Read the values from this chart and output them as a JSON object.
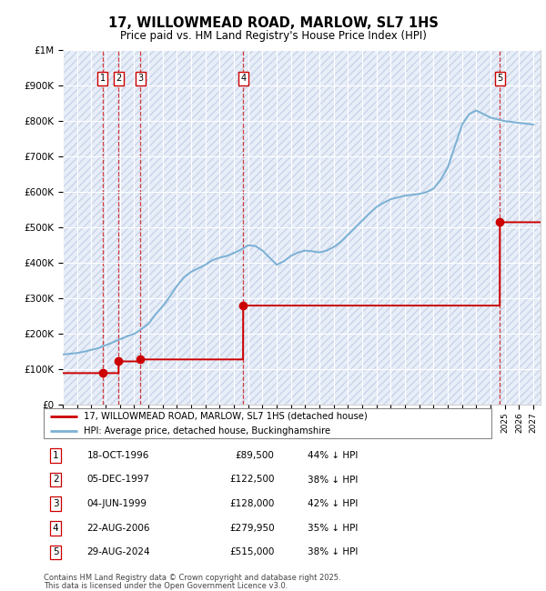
{
  "title": "17, WILLOWMEAD ROAD, MARLOW, SL7 1HS",
  "subtitle": "Price paid vs. HM Land Registry's House Price Index (HPI)",
  "ylabel_ticks": [
    "£0",
    "£100K",
    "£200K",
    "£300K",
    "£400K",
    "£500K",
    "£600K",
    "£700K",
    "£800K",
    "£900K",
    "£1M"
  ],
  "ytick_values": [
    0,
    100000,
    200000,
    300000,
    400000,
    500000,
    600000,
    700000,
    800000,
    900000,
    1000000
  ],
  "xlim_start": 1994.0,
  "xlim_end": 2027.5,
  "ylim_min": 0,
  "ylim_max": 1000000,
  "background_color": "#e8eef8",
  "hatch_color": "#c8d4e8",
  "grid_color": "#ffffff",
  "transaction_color": "#cc0000",
  "hpi_color": "#7ab0d4",
  "transactions": [
    {
      "num": 1,
      "date": "18-OCT-1996",
      "year": 1996.8,
      "price": 89500,
      "pct": "44%",
      "dir": "↓"
    },
    {
      "num": 2,
      "date": "05-DEC-1997",
      "year": 1997.92,
      "price": 122500,
      "pct": "38%",
      "dir": "↓"
    },
    {
      "num": 3,
      "date": "04-JUN-1999",
      "year": 1999.43,
      "price": 128000,
      "pct": "42%",
      "dir": "↓"
    },
    {
      "num": 4,
      "date": "22-AUG-2006",
      "year": 2006.65,
      "price": 279950,
      "pct": "35%",
      "dir": "↓"
    },
    {
      "num": 5,
      "date": "29-AUG-2024",
      "year": 2024.65,
      "price": 515000,
      "pct": "38%",
      "dir": "↓"
    }
  ],
  "legend_line1": "17, WILLOWMEAD ROAD, MARLOW, SL7 1HS (detached house)",
  "legend_line2": "HPI: Average price, detached house, Buckinghamshire",
  "footer_line1": "Contains HM Land Registry data © Crown copyright and database right 2025.",
  "footer_line2": "This data is licensed under the Open Government Licence v3.0.",
  "hpi_points": [
    [
      1994.0,
      142000
    ],
    [
      1994.5,
      144000
    ],
    [
      1995.0,
      146000
    ],
    [
      1995.5,
      150000
    ],
    [
      1996.0,
      155000
    ],
    [
      1996.5,
      160000
    ],
    [
      1997.0,
      168000
    ],
    [
      1997.5,
      176000
    ],
    [
      1998.0,
      185000
    ],
    [
      1998.5,
      193000
    ],
    [
      1999.0,
      200000
    ],
    [
      1999.5,
      213000
    ],
    [
      2000.0,
      228000
    ],
    [
      2000.5,
      255000
    ],
    [
      2001.0,
      278000
    ],
    [
      2001.5,
      305000
    ],
    [
      2002.0,
      335000
    ],
    [
      2002.5,
      360000
    ],
    [
      2003.0,
      375000
    ],
    [
      2003.5,
      385000
    ],
    [
      2004.0,
      395000
    ],
    [
      2004.5,
      408000
    ],
    [
      2005.0,
      415000
    ],
    [
      2005.5,
      420000
    ],
    [
      2006.0,
      428000
    ],
    [
      2006.5,
      438000
    ],
    [
      2007.0,
      450000
    ],
    [
      2007.5,
      448000
    ],
    [
      2008.0,
      435000
    ],
    [
      2008.5,
      415000
    ],
    [
      2009.0,
      395000
    ],
    [
      2009.5,
      405000
    ],
    [
      2010.0,
      420000
    ],
    [
      2010.5,
      430000
    ],
    [
      2011.0,
      435000
    ],
    [
      2011.5,
      433000
    ],
    [
      2012.0,
      430000
    ],
    [
      2012.5,
      435000
    ],
    [
      2013.0,
      445000
    ],
    [
      2013.5,
      460000
    ],
    [
      2014.0,
      480000
    ],
    [
      2014.5,
      500000
    ],
    [
      2015.0,
      520000
    ],
    [
      2015.5,
      540000
    ],
    [
      2016.0,
      558000
    ],
    [
      2016.5,
      570000
    ],
    [
      2017.0,
      580000
    ],
    [
      2017.5,
      585000
    ],
    [
      2018.0,
      590000
    ],
    [
      2018.5,
      592000
    ],
    [
      2019.0,
      595000
    ],
    [
      2019.5,
      600000
    ],
    [
      2020.0,
      610000
    ],
    [
      2020.5,
      635000
    ],
    [
      2021.0,
      670000
    ],
    [
      2021.5,
      730000
    ],
    [
      2022.0,
      790000
    ],
    [
      2022.5,
      820000
    ],
    [
      2023.0,
      830000
    ],
    [
      2023.5,
      820000
    ],
    [
      2024.0,
      810000
    ],
    [
      2024.5,
      805000
    ],
    [
      2025.0,
      800000
    ],
    [
      2025.5,
      798000
    ],
    [
      2026.0,
      795000
    ],
    [
      2026.5,
      793000
    ],
    [
      2027.0,
      790000
    ]
  ],
  "price_paid_points": [
    [
      1994.0,
      89500
    ],
    [
      1996.79,
      89500
    ],
    [
      1996.8,
      89500
    ],
    [
      1997.91,
      89500
    ],
    [
      1997.92,
      122500
    ],
    [
      1999.42,
      122500
    ],
    [
      1999.43,
      128000
    ],
    [
      2006.64,
      128000
    ],
    [
      2006.65,
      279950
    ],
    [
      2024.64,
      279950
    ],
    [
      2024.65,
      515000
    ],
    [
      2027.5,
      515000
    ]
  ]
}
